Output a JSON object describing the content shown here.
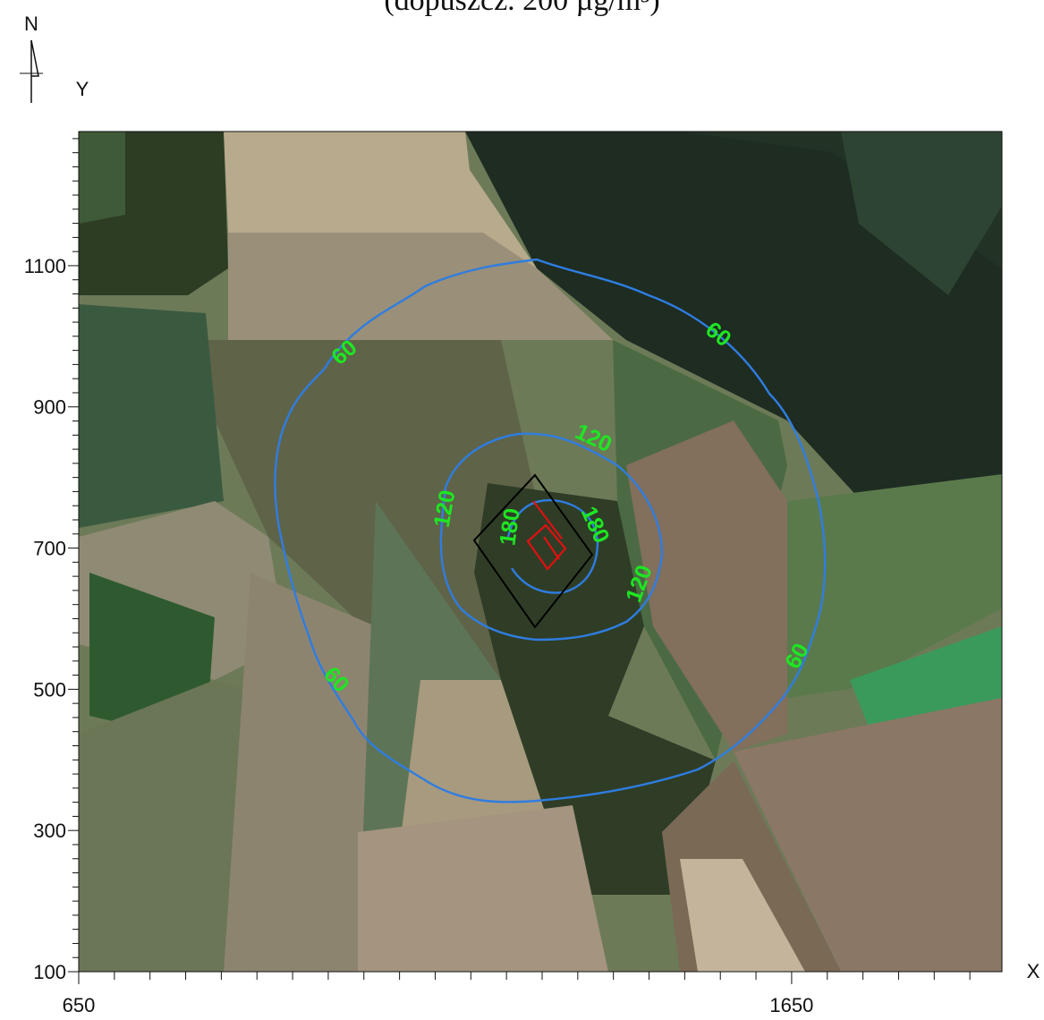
{
  "title_partial": "(dopuszcz. 200 µg/m³)",
  "north_label": "N",
  "y_axis": {
    "label": "Y",
    "ticks": [
      100,
      300,
      500,
      700,
      900,
      1100
    ],
    "range": [
      100,
      1290
    ]
  },
  "x_axis": {
    "label": "X",
    "ticks": [
      650,
      1650
    ],
    "range": [
      650,
      1945
    ]
  },
  "contours": [
    {
      "level": "60",
      "color": "#2f7de0"
    },
    {
      "level": "120",
      "color": "#2f7de0"
    },
    {
      "level": "180",
      "color": "#2f7de0"
    }
  ],
  "contour_labels": [
    "60",
    "60",
    "60",
    "60",
    "120",
    "120",
    "120",
    "180",
    "180"
  ],
  "colors": {
    "contour_line": "#2f7de0",
    "contour_label": "#1ee622",
    "source": "#e01010",
    "boundary": "#000000"
  }
}
